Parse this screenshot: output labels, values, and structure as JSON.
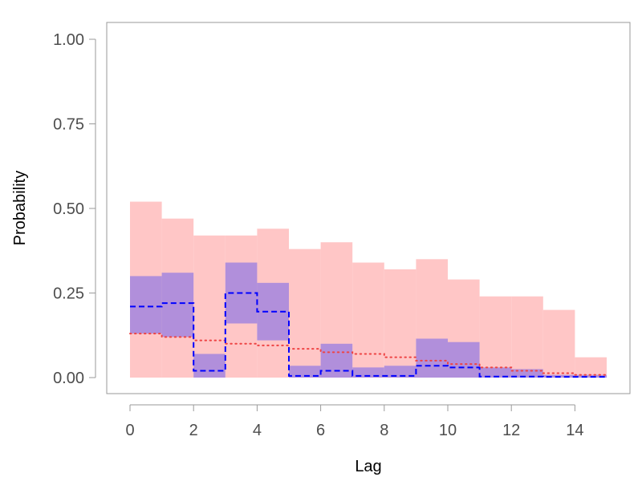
{
  "chart_data": {
    "type": "bar",
    "xlabel": "Lag",
    "ylabel": "Probability",
    "xlim": [
      0,
      15
    ],
    "ylim": [
      0,
      1
    ],
    "x_ticks": [
      "0",
      "2",
      "4",
      "6",
      "8",
      "10",
      "12",
      "14"
    ],
    "y_ticks": [
      "0.00",
      "0.25",
      "0.50",
      "0.75",
      "1.00"
    ],
    "grid": false,
    "colors": {
      "outer_band": "#ffc6c6",
      "inner_band": "#b18fdb",
      "observed_line": "#0000ff",
      "expected_line": "#ee4444"
    },
    "bins": [
      0,
      1,
      2,
      3,
      4,
      5,
      6,
      7,
      8,
      9,
      10,
      11,
      12,
      13,
      14
    ],
    "series": [
      {
        "kind": "outer_band",
        "lower": [
          0,
          0,
          0,
          0,
          0,
          0,
          0,
          0,
          0,
          0,
          0,
          0,
          0,
          0,
          0
        ],
        "upper": [
          0.52,
          0.47,
          0.42,
          0.42,
          0.44,
          0.38,
          0.4,
          0.34,
          0.32,
          0.35,
          0.29,
          0.24,
          0.24,
          0.2,
          0.06
        ]
      },
      {
        "kind": "inner_band",
        "lower": [
          0.13,
          0.12,
          0.0,
          0.16,
          0.11,
          0.0,
          0.0,
          0.0,
          0.0,
          0.0,
          0.0,
          0.0,
          0.0,
          0.0,
          0.0
        ],
        "upper": [
          0.3,
          0.31,
          0.07,
          0.34,
          0.28,
          0.035,
          0.1,
          0.03,
          0.035,
          0.115,
          0.105,
          0.03,
          0.025,
          0.008,
          0.008
        ]
      },
      {
        "kind": "observed_line",
        "values": [
          0.21,
          0.22,
          0.02,
          0.25,
          0.195,
          0.005,
          0.02,
          0.005,
          0.005,
          0.035,
          0.03,
          0.003,
          0.003,
          0.002,
          0.002
        ]
      },
      {
        "kind": "expected_line",
        "values": [
          0.13,
          0.12,
          0.11,
          0.1,
          0.095,
          0.085,
          0.075,
          0.07,
          0.06,
          0.05,
          0.04,
          0.03,
          0.02,
          0.013,
          0.008
        ]
      }
    ]
  }
}
